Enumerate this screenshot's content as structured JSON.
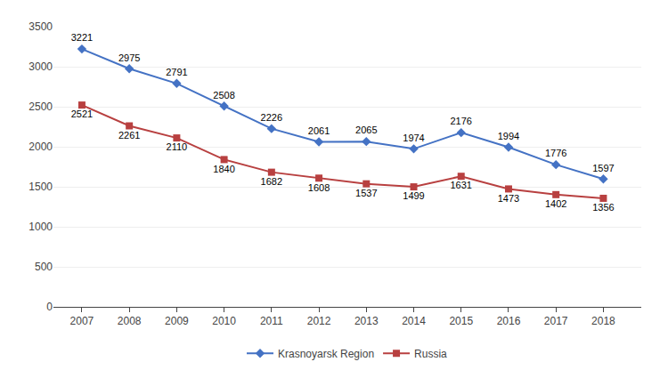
{
  "chart_data": {
    "type": "line",
    "x": [
      2007,
      2008,
      2009,
      2010,
      2011,
      2012,
      2013,
      2014,
      2015,
      2016,
      2017,
      2018
    ],
    "xlim": [
      2006.4,
      2018.8
    ],
    "xticks": [
      2007,
      2008,
      2009,
      2010,
      2011,
      2012,
      2013,
      2014,
      2015,
      2016,
      2017,
      2018
    ],
    "ylim": [
      0,
      3500
    ],
    "yticks": [
      0,
      500,
      1000,
      1500,
      2000,
      2500,
      3000,
      3500
    ],
    "grid": "y",
    "legend": "bottom",
    "data_labels": true,
    "series": [
      {
        "name": "Krasnoyarsk Region",
        "color": "#4472C4",
        "marker": "diamond",
        "values": [
          3221,
          2975,
          2791,
          2508,
          2226,
          2061,
          2065,
          1974,
          2176,
          1994,
          1776,
          1597
        ]
      },
      {
        "name": "Russia",
        "color": "#B84040",
        "marker": "square",
        "values": [
          2521,
          2261,
          2110,
          1840,
          1682,
          1608,
          1537,
          1499,
          1631,
          1473,
          1402,
          1356
        ]
      }
    ]
  }
}
